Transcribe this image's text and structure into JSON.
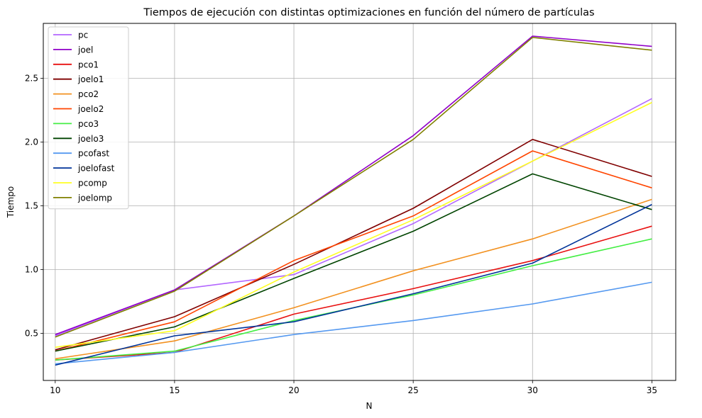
{
  "chart_data": {
    "type": "line",
    "title": "Tiempos de ejecución con distintas optimizaciones en función del número de partículas",
    "xlabel": "N",
    "ylabel": "Tiempo",
    "x": [
      10,
      15,
      20,
      25,
      30,
      35
    ],
    "xticks": [
      "10",
      "15",
      "20",
      "25",
      "30",
      "35"
    ],
    "yticks": [
      "0.5",
      "1.0",
      "1.5",
      "2.0",
      "2.5"
    ],
    "xlim": [
      9.5,
      36
    ],
    "ylim": [
      0.13,
      2.93
    ],
    "grid": true,
    "legend_position": "top-left",
    "series": [
      {
        "name": "pc",
        "color": "#b266ff",
        "values": [
          0.48,
          0.84,
          0.96,
          1.36,
          1.85,
          2.34
        ]
      },
      {
        "name": "joel",
        "color": "#9000c8",
        "values": [
          0.49,
          0.84,
          1.42,
          2.05,
          2.83,
          2.75
        ]
      },
      {
        "name": "pco1",
        "color": "#e81010",
        "values": [
          0.29,
          0.35,
          0.65,
          0.85,
          1.07,
          1.34
        ]
      },
      {
        "name": "joelo1",
        "color": "#800000",
        "values": [
          0.37,
          0.63,
          1.04,
          1.48,
          2.02,
          1.73
        ]
      },
      {
        "name": "pco2",
        "color": "#f29120",
        "values": [
          0.3,
          0.44,
          0.7,
          0.99,
          1.24,
          1.55
        ]
      },
      {
        "name": "joelo2",
        "color": "#ff4500",
        "values": [
          0.36,
          0.59,
          1.07,
          1.42,
          1.93,
          1.64
        ]
      },
      {
        "name": "pco3",
        "color": "#44ee44",
        "values": [
          0.29,
          0.36,
          0.6,
          0.8,
          1.03,
          1.24
        ]
      },
      {
        "name": "joelo3",
        "color": "#004400",
        "values": [
          0.36,
          0.55,
          0.93,
          1.3,
          1.75,
          1.47
        ]
      },
      {
        "name": "pcofast",
        "color": "#5599f0",
        "values": [
          0.26,
          0.35,
          0.49,
          0.6,
          0.73,
          0.9
        ]
      },
      {
        "name": "joelofast",
        "color": "#003399",
        "values": [
          0.25,
          0.48,
          0.59,
          0.81,
          1.05,
          1.51
        ]
      },
      {
        "name": "pcomp",
        "color": "#ffff22",
        "values": [
          0.39,
          0.52,
          0.98,
          1.39,
          1.85,
          2.31
        ]
      },
      {
        "name": "joelomp",
        "color": "#808000",
        "values": [
          0.47,
          0.83,
          1.42,
          2.02,
          2.82,
          2.72
        ]
      }
    ]
  }
}
